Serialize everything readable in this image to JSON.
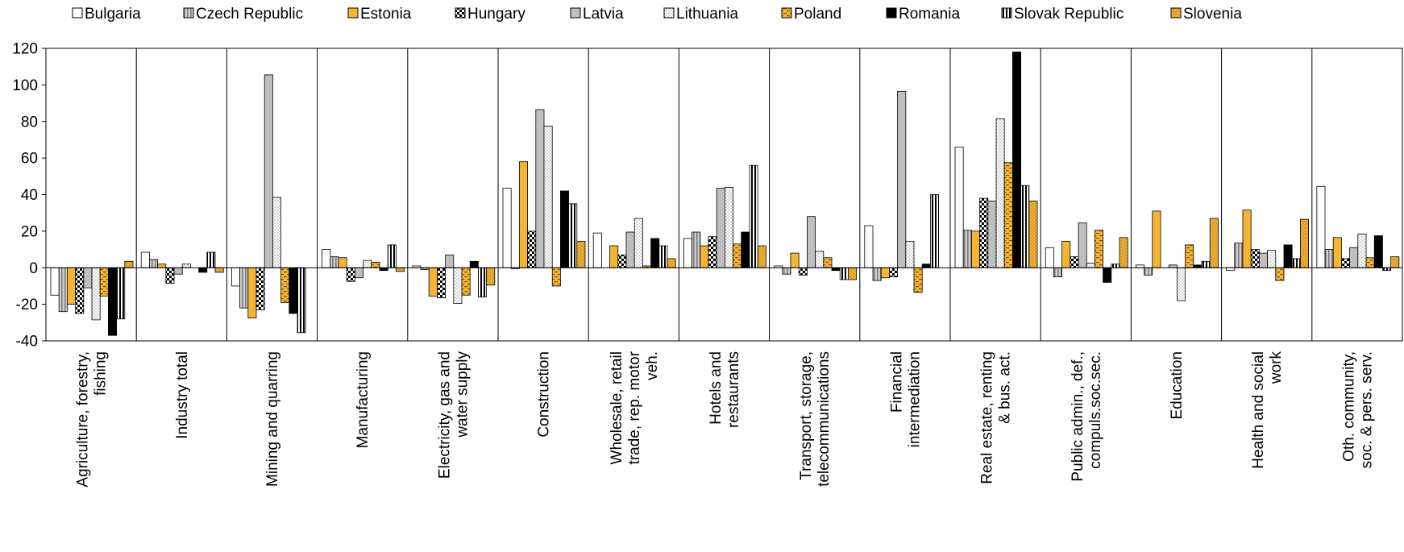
{
  "chart_data": {
    "type": "bar",
    "title": "",
    "xlabel": "",
    "ylabel": "",
    "ylim": [
      -40,
      120
    ],
    "yticks": [
      "120",
      "100",
      "80",
      "60",
      "40",
      "20",
      "0",
      "-20",
      "-40"
    ],
    "grid": false,
    "legend_position": "top",
    "categories": [
      [
        "Agriculture, forestry,",
        "fishing"
      ],
      [
        "Industry total"
      ],
      [
        "Mining and quarring"
      ],
      [
        "Manufacturing"
      ],
      [
        "Electricity, gas and",
        "water supply"
      ],
      [
        "Construction"
      ],
      [
        "Wholesale, retail",
        "trade, rep. motor",
        "veh."
      ],
      [
        "Hotels and",
        "restaurants"
      ],
      [
        "Transport, storage,",
        "telecommunications"
      ],
      [
        "Financial",
        "intermediation"
      ],
      [
        "Real estate, renting",
        "& bus. act."
      ],
      [
        "Public admin., def.,",
        "compuls.soc.sec."
      ],
      [
        "Education"
      ],
      [
        "Health and social",
        "work"
      ],
      [
        "Oth. community,",
        "soc. & pers. serv."
      ]
    ],
    "series": [
      {
        "name": "Bulgaria",
        "pattern": "white",
        "values": [
          -15,
          8.5,
          -10,
          10,
          1,
          43.5,
          19,
          16,
          1,
          23,
          66,
          11,
          1.5,
          -1.5,
          44.5
        ]
      },
      {
        "name": "Czech Republic",
        "pattern": "gray-stripe",
        "values": [
          -24,
          4.5,
          -22,
          6,
          -1,
          -0.5,
          0,
          19.5,
          -3.5,
          -7,
          20.5,
          -5,
          -4,
          13.5,
          10
        ]
      },
      {
        "name": "Estonia",
        "pattern": "orange",
        "values": [
          -20,
          2,
          -27.5,
          5.5,
          -15.5,
          58,
          12,
          12,
          8,
          -5.5,
          20,
          14.5,
          31,
          31.5,
          16.5
        ]
      },
      {
        "name": "Hungary",
        "pattern": "checker",
        "values": [
          -25,
          -8.5,
          -23,
          -7.5,
          -16.5,
          20,
          7,
          17,
          -4,
          -5,
          38,
          6,
          0,
          10,
          5
        ]
      },
      {
        "name": "Latvia",
        "pattern": "gray",
        "values": [
          -11,
          -3.5,
          105.5,
          -5.5,
          7,
          86.5,
          19.5,
          43.5,
          28,
          96.5,
          36.5,
          24.5,
          1.5,
          8,
          11
        ]
      },
      {
        "name": "Lithuania",
        "pattern": "dots",
        "values": [
          -28.5,
          2,
          38.5,
          4,
          -19.5,
          77.5,
          27,
          44,
          9,
          14.5,
          81.5,
          2.5,
          -18,
          9.5,
          18.5
        ]
      },
      {
        "name": "Poland",
        "pattern": "orange-dash",
        "values": [
          -15.5,
          0,
          -19,
          3,
          -15,
          -10,
          1,
          13,
          5.5,
          -13.5,
          57.5,
          20.5,
          12.5,
          -7,
          5.5
        ]
      },
      {
        "name": "Romania",
        "pattern": "black",
        "values": [
          -37,
          -2.5,
          -25,
          -1.5,
          3.5,
          42,
          16,
          19.5,
          -1.5,
          2,
          118,
          -8,
          1.5,
          12.5,
          17.5
        ]
      },
      {
        "name": "Slovak Republic",
        "pattern": "vstripe",
        "values": [
          -28,
          8.5,
          -35.5,
          12.5,
          -16,
          35,
          12,
          56,
          -6.5,
          40,
          45,
          2,
          3.5,
          5,
          -1.5
        ]
      },
      {
        "name": "Slovenia",
        "pattern": "orange-dots",
        "values": [
          3.5,
          -2.5,
          0,
          -2,
          -9.5,
          14.5,
          5,
          12,
          -6.5,
          0,
          36.5,
          16.5,
          27,
          26.5,
          6
        ]
      }
    ]
  }
}
